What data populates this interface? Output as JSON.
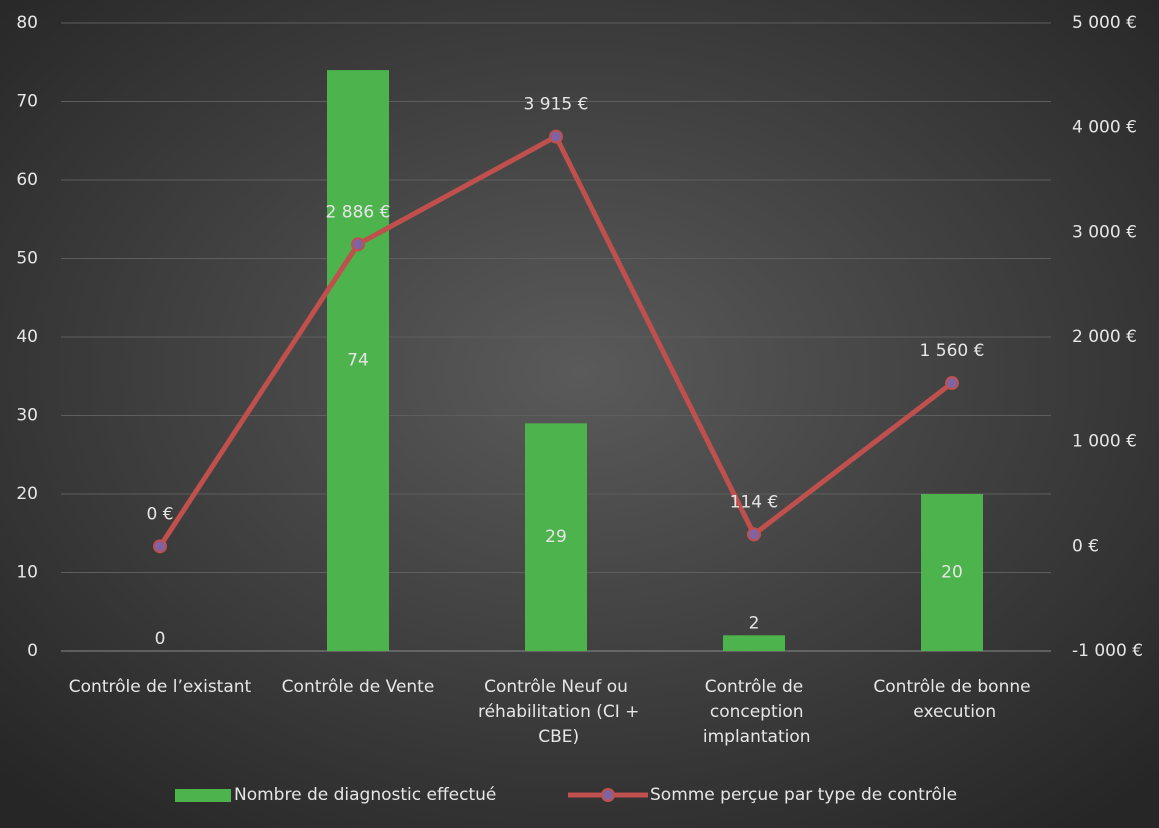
{
  "chart_data": {
    "type": "bar_line",
    "categories": [
      "Contrôle de l’existant",
      "Contrôle de Vente",
      "Contrôle Neuf ou réhabilitation (CI + CBE)",
      "Contrôle de conception implantation",
      "Contrôle de bonne execution"
    ],
    "series": [
      {
        "name": "Nombre de diagnostic effectué",
        "type": "bar",
        "color": "#4db34d",
        "values": [
          0,
          74,
          29,
          2,
          20
        ],
        "value_labels": [
          "0",
          "74",
          "29",
          "2",
          "20"
        ]
      },
      {
        "name": "Somme perçue par type de contrôle",
        "type": "line",
        "axis": "y2",
        "color": "#c0504d",
        "marker_color": "#8064a2",
        "values": [
          0,
          2886,
          3915,
          114,
          1560
        ],
        "value_labels": [
          "0 €",
          "2 886 €",
          "3 915 €",
          "114 €",
          "1 560 €"
        ]
      }
    ],
    "ylim": [
      0,
      80
    ],
    "yticks": [
      0,
      10,
      20,
      30,
      40,
      50,
      60,
      70,
      80
    ],
    "y2lim": [
      -1000,
      5000
    ],
    "y2ticks": [
      {
        "value": -1000,
        "label": "-1 000 €"
      },
      {
        "value": 0,
        "label": "0 €"
      },
      {
        "value": 1000,
        "label": "1 000 €"
      },
      {
        "value": 2000,
        "label": "2 000 €"
      },
      {
        "value": 3000,
        "label": "3 000 €"
      },
      {
        "value": 4000,
        "label": "4 000 €"
      },
      {
        "value": 5000,
        "label": "5 000 €"
      }
    ],
    "grid": true,
    "legend": "bottom"
  }
}
